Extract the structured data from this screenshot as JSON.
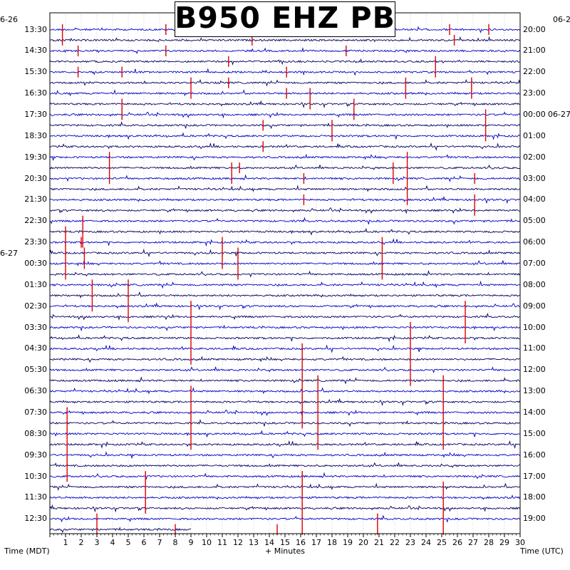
{
  "title": "B950 EHZ PB",
  "left_axis_label": "Time (MDT)",
  "right_axis_label": "Time (UTC)",
  "bottom_axis_label": "+ Minutes",
  "left_date_marks": [
    {
      "label": "6-26",
      "row": 0
    },
    {
      "label": "6-27",
      "row": 22
    }
  ],
  "right_date_marks": [
    {
      "label": "06-2",
      "row": 0
    },
    {
      "label": "06-27",
      "row": 8
    }
  ],
  "chart_data": {
    "type": "helicorder",
    "station": "B950",
    "channel": "EHZ",
    "network": "PB",
    "minutes_per_line": 30,
    "x_range": [
      0,
      30
    ],
    "x_ticks": [
      "1",
      "2",
      "3",
      "4",
      "5",
      "6",
      "7",
      "8",
      "9",
      "10",
      "11",
      "12",
      "13",
      "14",
      "15",
      "16",
      "17",
      "18",
      "19",
      "20",
      "21",
      "22",
      "23",
      "24",
      "25",
      "26",
      "27",
      "28",
      "29",
      "30"
    ],
    "rows": 48,
    "left_times": [
      "13:30",
      "14:30",
      "15:30",
      "16:30",
      "17:30",
      "18:30",
      "19:30",
      "20:30",
      "21:30",
      "22:30",
      "23:30",
      "00:30",
      "01:30",
      "02:30",
      "03:30",
      "04:30",
      "05:30",
      "06:30",
      "07:30",
      "08:30",
      "09:30",
      "10:30",
      "11:30",
      "12:30"
    ],
    "right_times": [
      "20:00",
      "21:00",
      "22:00",
      "23:00",
      "00:00",
      "01:00",
      "02:00",
      "03:00",
      "04:00",
      "05:00",
      "06:00",
      "07:00",
      "08:00",
      "09:00",
      "10:00",
      "11:00",
      "12:00",
      "13:00",
      "14:00",
      "15:00",
      "16:00",
      "17:00",
      "18:00",
      "19:00"
    ],
    "trace_colors": [
      "#0000cc",
      "#000066"
    ],
    "event_color": "#dd0000",
    "events": [
      {
        "row": 0,
        "minute": 0.8
      },
      {
        "row": 1,
        "minute": 0.8
      },
      {
        "row": 2,
        "minute": 1.8
      },
      {
        "row": 4,
        "minute": 1.8
      },
      {
        "row": 0,
        "minute": 7.4
      },
      {
        "row": 2,
        "minute": 7.4
      },
      {
        "row": 0,
        "minute": 12.6
      },
      {
        "row": 1,
        "minute": 12.9
      },
      {
        "row": 2,
        "minute": 18.9
      },
      {
        "row": 0,
        "minute": 25.5
      },
      {
        "row": 1,
        "minute": 25.8
      },
      {
        "row": 0,
        "minute": 28.0
      },
      {
        "row": 3,
        "minute": 11.4
      },
      {
        "row": 5,
        "minute": 11.4
      },
      {
        "row": 4,
        "minute": 15.1
      },
      {
        "row": 6,
        "minute": 15.1
      },
      {
        "row": 4,
        "minute": 4.6
      },
      {
        "row": 7,
        "minute": 4.6
      },
      {
        "row": 8,
        "minute": 4.6
      },
      {
        "row": 5,
        "minute": 9.0
      },
      {
        "row": 6,
        "minute": 9.0
      },
      {
        "row": 6,
        "minute": 16.6
      },
      {
        "row": 7,
        "minute": 16.6
      },
      {
        "row": 7,
        "minute": 19.4
      },
      {
        "row": 8,
        "minute": 19.4
      },
      {
        "row": 3,
        "minute": 24.6
      },
      {
        "row": 4,
        "minute": 24.6
      },
      {
        "row": 5,
        "minute": 22.7
      },
      {
        "row": 6,
        "minute": 22.7
      },
      {
        "row": 5,
        "minute": 26.9
      },
      {
        "row": 6,
        "minute": 26.9
      },
      {
        "row": 8,
        "minute": 27.8
      },
      {
        "row": 9,
        "minute": 27.8
      },
      {
        "row": 10,
        "minute": 27.8
      },
      {
        "row": 9,
        "minute": 13.6
      },
      {
        "row": 11,
        "minute": 13.6
      },
      {
        "row": 9,
        "minute": 18.0
      },
      {
        "row": 10,
        "minute": 18.0
      },
      {
        "row": 12,
        "minute": 3.8
      },
      {
        "row": 13,
        "minute": 3.8
      },
      {
        "row": 14,
        "minute": 3.8
      },
      {
        "row": 13,
        "minute": 11.6
      },
      {
        "row": 14,
        "minute": 11.6
      },
      {
        "row": 13,
        "minute": 12.1
      },
      {
        "row": 13,
        "minute": 21.9
      },
      {
        "row": 14,
        "minute": 21.9
      },
      {
        "row": 12,
        "minute": 22.8
      },
      {
        "row": 13,
        "minute": 22.8
      },
      {
        "row": 14,
        "minute": 22.8
      },
      {
        "row": 15,
        "minute": 22.8
      },
      {
        "row": 16,
        "minute": 22.8
      },
      {
        "row": 14,
        "minute": 16.2
      },
      {
        "row": 16,
        "minute": 16.2
      },
      {
        "row": 14,
        "minute": 27.1
      },
      {
        "row": 16,
        "minute": 27.1
      },
      {
        "row": 17,
        "minute": 27.1
      },
      {
        "row": 18,
        "minute": 2.1
      },
      {
        "row": 19,
        "minute": 2.1
      },
      {
        "row": 20,
        "minute": 2.1
      },
      {
        "row": 19,
        "minute": 1.0
      },
      {
        "row": 20,
        "minute": 1.0
      },
      {
        "row": 21,
        "minute": 1.0
      },
      {
        "row": 22,
        "minute": 1.0
      },
      {
        "row": 23,
        "minute": 1.0
      },
      {
        "row": 20,
        "minute": 11.0
      },
      {
        "row": 21,
        "minute": 11.0
      },
      {
        "row": 22,
        "minute": 11.0
      },
      {
        "row": 21,
        "minute": 12.0
      },
      {
        "row": 22,
        "minute": 12.0
      },
      {
        "row": 23,
        "minute": 12.0
      },
      {
        "row": 20,
        "minute": 21.2
      },
      {
        "row": 21,
        "minute": 21.2
      },
      {
        "row": 22,
        "minute": 21.2
      },
      {
        "row": 23,
        "minute": 21.2
      },
      {
        "row": 20,
        "minute": 2.0
      },
      {
        "row": 21,
        "minute": 2.2
      },
      {
        "row": 22,
        "minute": 2.2
      },
      {
        "row": 24,
        "minute": 2.7
      },
      {
        "row": 25,
        "minute": 2.7
      },
      {
        "row": 26,
        "minute": 2.7
      },
      {
        "row": 24,
        "minute": 5.0
      },
      {
        "row": 25,
        "minute": 5.0
      },
      {
        "row": 26,
        "minute": 5.0
      },
      {
        "row": 27,
        "minute": 5.0
      },
      {
        "row": 26,
        "minute": 9.0
      },
      {
        "row": 27,
        "minute": 9.0
      },
      {
        "row": 28,
        "minute": 9.0
      },
      {
        "row": 29,
        "minute": 9.0
      },
      {
        "row": 30,
        "minute": 9.0
      },
      {
        "row": 31,
        "minute": 9.0
      },
      {
        "row": 28,
        "minute": 23.0
      },
      {
        "row": 29,
        "minute": 23.0
      },
      {
        "row": 30,
        "minute": 23.0
      },
      {
        "row": 31,
        "minute": 23.0
      },
      {
        "row": 32,
        "minute": 23.0
      },
      {
        "row": 33,
        "minute": 23.0
      },
      {
        "row": 26,
        "minute": 26.5
      },
      {
        "row": 27,
        "minute": 26.5
      },
      {
        "row": 28,
        "minute": 26.5
      },
      {
        "row": 29,
        "minute": 26.5
      },
      {
        "row": 30,
        "minute": 16.1
      },
      {
        "row": 31,
        "minute": 16.1
      },
      {
        "row": 32,
        "minute": 16.1
      },
      {
        "row": 33,
        "minute": 16.1
      },
      {
        "row": 34,
        "minute": 16.1
      },
      {
        "row": 35,
        "minute": 16.1
      },
      {
        "row": 36,
        "minute": 16.1
      },
      {
        "row": 37,
        "minute": 16.1
      },
      {
        "row": 33,
        "minute": 17.1
      },
      {
        "row": 34,
        "minute": 17.1
      },
      {
        "row": 35,
        "minute": 17.1
      },
      {
        "row": 36,
        "minute": 17.1
      },
      {
        "row": 37,
        "minute": 17.1
      },
      {
        "row": 38,
        "minute": 17.1
      },
      {
        "row": 39,
        "minute": 17.1
      },
      {
        "row": 33,
        "minute": 25.1
      },
      {
        "row": 34,
        "minute": 25.1
      },
      {
        "row": 35,
        "minute": 25.1
      },
      {
        "row": 36,
        "minute": 25.1
      },
      {
        "row": 37,
        "minute": 25.1
      },
      {
        "row": 38,
        "minute": 25.1
      },
      {
        "row": 39,
        "minute": 25.1
      },
      {
        "row": 34,
        "minute": 9.0
      },
      {
        "row": 35,
        "minute": 9.0
      },
      {
        "row": 36,
        "minute": 9.0
      },
      {
        "row": 37,
        "minute": 9.0
      },
      {
        "row": 38,
        "minute": 9.0
      },
      {
        "row": 39,
        "minute": 9.0
      },
      {
        "row": 36,
        "minute": 1.1
      },
      {
        "row": 37,
        "minute": 1.1
      },
      {
        "row": 38,
        "minute": 1.1
      },
      {
        "row": 39,
        "minute": 1.1
      },
      {
        "row": 40,
        "minute": 1.1
      },
      {
        "row": 41,
        "minute": 1.1
      },
      {
        "row": 42,
        "minute": 1.1
      },
      {
        "row": 42,
        "minute": 6.1
      },
      {
        "row": 43,
        "minute": 6.1
      },
      {
        "row": 44,
        "minute": 6.1
      },
      {
        "row": 45,
        "minute": 6.1
      },
      {
        "row": 42,
        "minute": 16.1
      },
      {
        "row": 43,
        "minute": 16.1
      },
      {
        "row": 44,
        "minute": 16.1
      },
      {
        "row": 45,
        "minute": 16.1
      },
      {
        "row": 46,
        "minute": 16.1
      },
      {
        "row": 47,
        "minute": 16.1
      },
      {
        "row": 43,
        "minute": 25.1
      },
      {
        "row": 44,
        "minute": 25.1
      },
      {
        "row": 45,
        "minute": 25.1
      },
      {
        "row": 46,
        "minute": 25.1
      },
      {
        "row": 47,
        "minute": 25.1
      },
      {
        "row": 46,
        "minute": 3.0
      },
      {
        "row": 47,
        "minute": 3.0
      },
      {
        "row": 47,
        "minute": 8.0
      },
      {
        "row": 47,
        "minute": 14.5
      },
      {
        "row": 46,
        "minute": 20.9
      },
      {
        "row": 47,
        "minute": 20.9
      }
    ]
  }
}
